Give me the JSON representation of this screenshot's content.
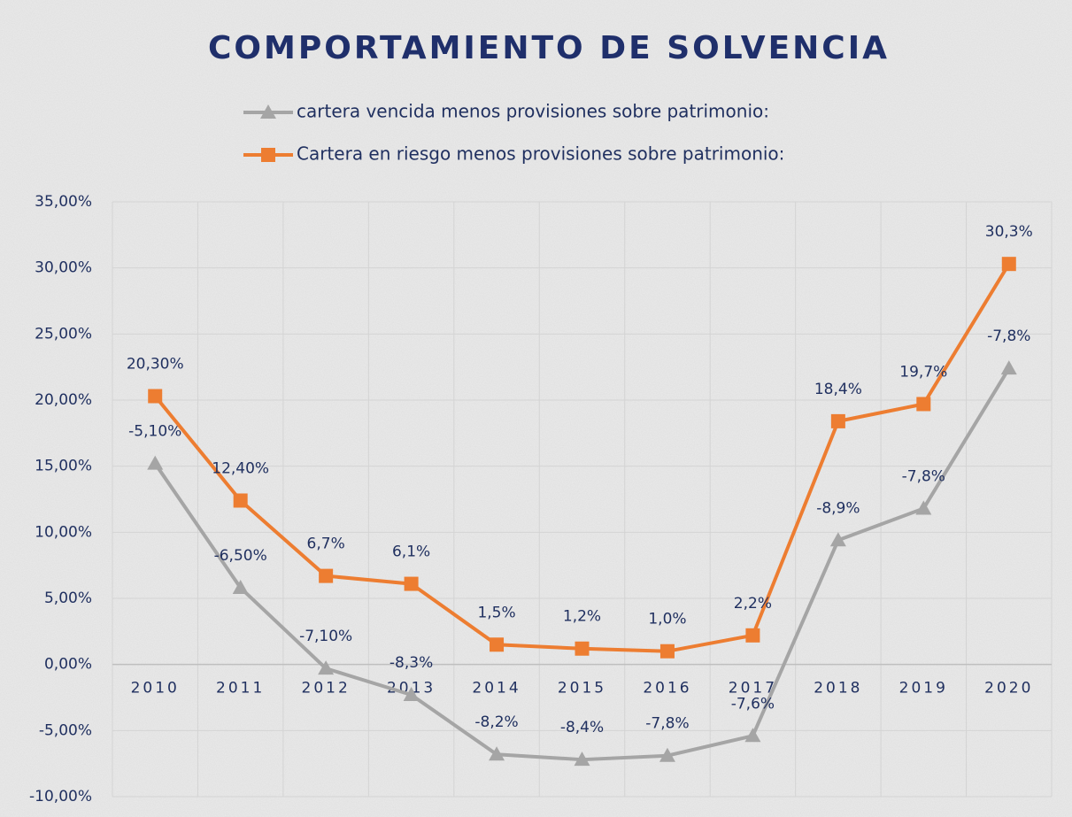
{
  "chart_data": {
    "type": "line",
    "title": "COMPORTAMIENTO DE SOLVENCIA",
    "categories": [
      "2010",
      "2011",
      "2012",
      "2013",
      "2014",
      "2015",
      "2016",
      "2017",
      "2018",
      "2019",
      "2020"
    ],
    "series": [
      {
        "name": "cartera vencida menos provisiones sobre patrimonio:",
        "color": "#a5a5a5",
        "marker": "triangle",
        "values": [
          15.2,
          5.8,
          -0.3,
          -2.3,
          -6.8,
          -7.2,
          -6.9,
          -5.4,
          9.4,
          11.8,
          22.4
        ],
        "annotations": [
          "-5,10%",
          "-6,50%",
          "-7,10%",
          "-8,3%",
          "-8,2%",
          "-8,4%",
          "-7,8%",
          "-7,6%",
          "-8,9%",
          "-7,8%",
          "-7,8%"
        ]
      },
      {
        "name": "Cartera en riesgo menos provisiones sobre patrimonio:",
        "color": "#ed7d31",
        "marker": "square",
        "values": [
          20.3,
          12.4,
          6.7,
          6.1,
          1.5,
          1.2,
          1.0,
          2.2,
          18.4,
          19.7,
          30.3
        ],
        "value_labels": [
          "20,30%",
          "12,40%",
          "6,7%",
          "6,1%",
          "1,5%",
          "1,2%",
          "1,0%",
          "2,2%",
          "18,4%",
          "19,7%",
          "30,3%"
        ]
      }
    ],
    "ylim": [
      -10,
      35
    ],
    "yticks": [
      {
        "value": -10,
        "label": "-10,00%"
      },
      {
        "value": -5,
        "label": "-5,00%"
      },
      {
        "value": 0,
        "label": "0,00%"
      },
      {
        "value": 5,
        "label": "5,00%"
      },
      {
        "value": 10,
        "label": "10,00%"
      },
      {
        "value": 15,
        "label": "15,00%"
      },
      {
        "value": 20,
        "label": "20,00%"
      },
      {
        "value": 25,
        "label": "25,00%"
      },
      {
        "value": 30,
        "label": "30,00%"
      },
      {
        "value": 35,
        "label": "35,00%"
      }
    ],
    "grid": true
  }
}
